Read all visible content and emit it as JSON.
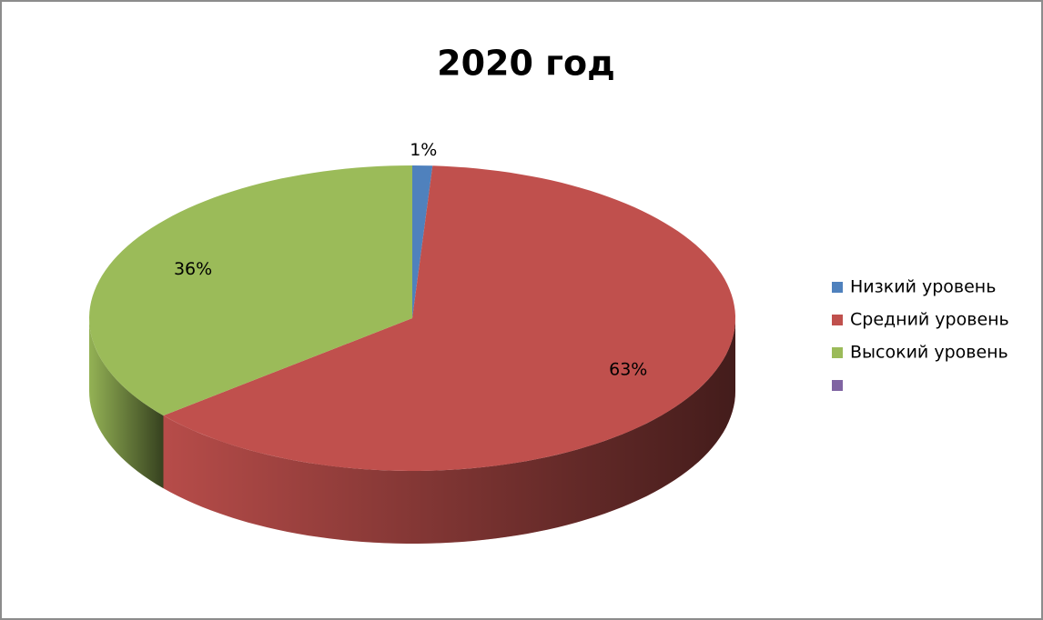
{
  "chart_data": {
    "type": "pie3d",
    "title": "2020 год",
    "categories": [
      "Низкий уровень",
      "Средний уровень",
      "Высокий уровень",
      null
    ],
    "values": [
      1,
      63,
      36,
      null
    ],
    "value_labels": [
      "1%",
      "63%",
      "36%",
      null
    ],
    "colors": [
      "#4f81bd",
      "#c0504d",
      "#9bbb59",
      "#8064a2"
    ],
    "legend": "right"
  }
}
